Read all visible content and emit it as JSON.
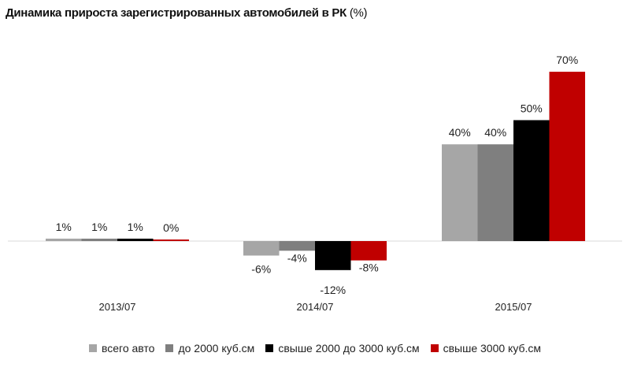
{
  "chart_data": {
    "type": "bar",
    "title": "Динамика прироста зарегистрированных автомобилей в РК",
    "title_unit": "(%)",
    "categories": [
      "2013/07",
      "2014/07",
      "2015/07"
    ],
    "series": [
      {
        "name": "всего авто",
        "values": [
          1,
          -6,
          40
        ],
        "labels": [
          "1%",
          "-6%",
          "40%"
        ],
        "color": "#a6a6a6"
      },
      {
        "name": "до 2000 куб.см",
        "values": [
          1,
          -4,
          40
        ],
        "labels": [
          "1%",
          "-4%",
          "40%"
        ],
        "color": "#7f7f7f"
      },
      {
        "name": "свыше 2000 до 3000 куб.см",
        "values": [
          1,
          -12,
          50
        ],
        "labels": [
          "1%",
          "-12%",
          "50%"
        ],
        "color": "#000000"
      },
      {
        "name": "свыше 3000 куб.см",
        "values": [
          0.3,
          -8,
          70
        ],
        "labels": [
          "0%",
          "-8%",
          "70%"
        ],
        "color": "#c00000"
      }
    ],
    "xlabel": "",
    "ylabel": "",
    "grid": false,
    "legend": "bottom"
  }
}
